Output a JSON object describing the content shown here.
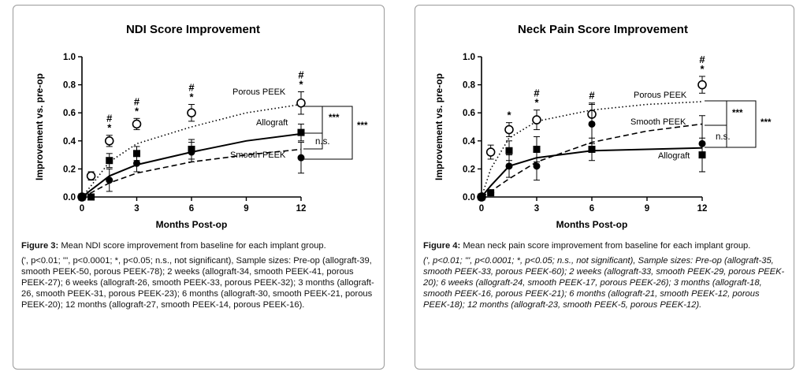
{
  "chart_data": [
    {
      "type": "line",
      "title": "NDI Score Improvement",
      "xlabel": "Months Post-op",
      "ylabel": "Improvement vs. pre-op",
      "xlim": [
        0,
        12
      ],
      "ylim": [
        0,
        1.0
      ],
      "xticks": [
        "0",
        "3",
        "6",
        "9",
        "12"
      ],
      "yticks": [
        "0.0",
        "0.2",
        "0.4",
        "0.6",
        "0.8",
        "1.0"
      ],
      "series": [
        {
          "name": "Porous PEEK",
          "marker": "open-circle",
          "line": "dotted",
          "x": [
            0,
            0.5,
            1.5,
            3,
            6,
            12
          ],
          "y": [
            0.0,
            0.15,
            0.4,
            0.52,
            0.6,
            0.67
          ],
          "err": [
            0.0,
            0.03,
            0.04,
            0.04,
            0.06,
            0.08
          ],
          "fit": [
            0,
            0.08,
            0.25,
            0.38,
            0.5,
            0.6,
            0.66
          ]
        },
        {
          "name": "Allograft",
          "marker": "filled-square",
          "line": "solid",
          "x": [
            0,
            0.5,
            1.5,
            3,
            6,
            12
          ],
          "y": [
            0.0,
            0.0,
            0.26,
            0.31,
            0.34,
            0.46
          ],
          "err": [
            0.0,
            0.0,
            0.05,
            0.05,
            0.07,
            0.06
          ],
          "fit": [
            0,
            0.05,
            0.15,
            0.23,
            0.32,
            0.4,
            0.45
          ]
        },
        {
          "name": "Smooth PEEK",
          "marker": "filled-circle",
          "line": "dashed",
          "x": [
            0,
            1.5,
            3,
            6,
            12
          ],
          "y": [
            0.0,
            0.12,
            0.24,
            0.32,
            0.28
          ],
          "err": [
            0.0,
            0.08,
            0.06,
            0.07,
            0.11
          ],
          "fit": [
            0,
            0.03,
            0.1,
            0.17,
            0.25,
            0.3,
            0.34
          ]
        }
      ],
      "fit_x": [
        0,
        0.5,
        1.5,
        3,
        6,
        9,
        12
      ],
      "significance": [
        {
          "x": 1.5,
          "marks": [
            "#",
            "*"
          ]
        },
        {
          "x": 3,
          "marks": [
            "#",
            "*"
          ]
        },
        {
          "x": 6,
          "marks": [
            "#",
            "*"
          ]
        },
        {
          "x": 12,
          "marks": [
            "#",
            "*"
          ]
        }
      ],
      "brackets": [
        {
          "label": "***",
          "between": [
            "Porous PEEK",
            "Allograft"
          ]
        },
        {
          "label": "n.s.",
          "between": [
            "Allograft",
            "Smooth PEEK"
          ]
        },
        {
          "label": "***",
          "between": [
            "Porous PEEK",
            "Smooth PEEK"
          ]
        }
      ]
    },
    {
      "type": "line",
      "title": "Neck Pain Score Improvement",
      "xlabel": "Months Post-op",
      "ylabel": "Improvement vs. pre-op",
      "xlim": [
        0,
        12
      ],
      "ylim": [
        0,
        1.0
      ],
      "xticks": [
        "0",
        "3",
        "6",
        "9",
        "12"
      ],
      "yticks": [
        "0.0",
        "0.2",
        "0.4",
        "0.6",
        "0.8",
        "1.0"
      ],
      "series": [
        {
          "name": "Porous PEEK",
          "marker": "open-circle",
          "line": "dotted",
          "x": [
            0,
            0.5,
            1.5,
            3,
            6,
            12
          ],
          "y": [
            0.0,
            0.32,
            0.48,
            0.55,
            0.59,
            0.8
          ],
          "err": [
            0.0,
            0.05,
            0.05,
            0.07,
            0.08,
            0.06
          ],
          "fit": [
            0,
            0.2,
            0.42,
            0.54,
            0.62,
            0.66,
            0.68
          ]
        },
        {
          "name": "Smooth PEEK",
          "marker": "filled-circle",
          "line": "dashed",
          "x": [
            0,
            0.5,
            1.5,
            3,
            6,
            12
          ],
          "y": [
            0.0,
            0.03,
            0.22,
            0.22,
            0.52,
            0.38
          ],
          "err": [
            0.0,
            0.0,
            0.08,
            0.1,
            0.14,
            0.2
          ],
          "fit": [
            0,
            0.04,
            0.13,
            0.25,
            0.39,
            0.47,
            0.52
          ]
        },
        {
          "name": "Allograft",
          "marker": "filled-square",
          "line": "solid",
          "x": [
            0,
            0.5,
            1.5,
            3,
            6,
            12
          ],
          "y": [
            0.0,
            0.03,
            0.33,
            0.34,
            0.34,
            0.3
          ],
          "err": [
            0.0,
            0.0,
            0.07,
            0.09,
            0.08,
            0.12
          ],
          "fit": [
            0,
            0.08,
            0.22,
            0.28,
            0.33,
            0.34,
            0.35
          ]
        }
      ],
      "fit_x": [
        0,
        0.5,
        1.5,
        3,
        6,
        9,
        12
      ],
      "significance": [
        {
          "x": 1.5,
          "marks": [
            "*"
          ]
        },
        {
          "x": 3,
          "marks": [
            "#",
            "*"
          ]
        },
        {
          "x": 6,
          "marks": [
            "#"
          ]
        },
        {
          "x": 12,
          "marks": [
            "#",
            "*"
          ]
        }
      ],
      "brackets": [
        {
          "label": "***",
          "between": [
            "Porous PEEK",
            "Smooth PEEK"
          ]
        },
        {
          "label": "n.s.",
          "between": [
            "Smooth PEEK",
            "Allograft"
          ]
        },
        {
          "label": "***",
          "between": [
            "Porous PEEK",
            "Allograft"
          ]
        }
      ]
    }
  ],
  "captions": {
    "left": {
      "label": "Figure 3:",
      "text": " Mean NDI score improvement from baseline for each implant group.",
      "note": "(', p<0.01; ''', p<0.0001; *, p<0.05; n.s., not significant), Sample sizes: Pre-op (allograft-39, smooth PEEK-50, porous PEEK-78); 2 weeks (allograft-34, smooth PEEK-41, porous PEEK-27); 6 weeks (allograft-26, smooth PEEK-33, porous PEEK-32); 3 months (allograft-26, smooth PEEK-31, porous PEEK-23); 6 months (allograft-30, smooth PEEK-21, porous PEEK-20); 12 months (allograft-27, smooth PEEK-14, porous PEEK-16)."
    },
    "right": {
      "label": "Figure 4:",
      "text": " Mean neck pain score improvement from baseline for each implant group.",
      "note": "(', p<0.01; ''', p<0.0001; *, p<0.05; n.s., not significant), Sample sizes: Pre-op (allograft-35, smooth PEEK-33, porous PEEK-60); 2 weeks (allograft-33, smooth PEEK-29, porous PEEK-20); 6 weeks (allograft-24, smooth PEEK-17, porous PEEK-26); 3 months (allograft-18, smooth PEEK-16, porous PEEK-21); 6 months (allograft-21, smooth PEEK-12, porous PEEK-18); 12 months (allograft-23, smooth PEEK-5, porous PEEK-12)."
    }
  }
}
